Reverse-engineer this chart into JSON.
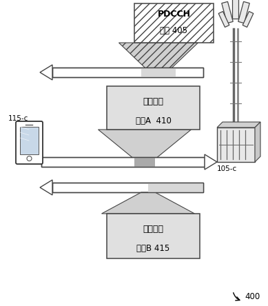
{
  "background": "#ffffff",
  "label_115c": "115-c",
  "label_105c": "105-c",
  "label_400": "400",
  "box1_lines": [
    "PDCCH",
    "消息 405"
  ],
  "box2_lines": [
    "随机接入",
    "消息A  410"
  ],
  "box3_lines": [
    "随机接入",
    "消息B 415"
  ],
  "gray_fill": "#d8d8d8",
  "light_fill": "#efefef",
  "border_color": "#444444",
  "arrow_outline": "#555555"
}
